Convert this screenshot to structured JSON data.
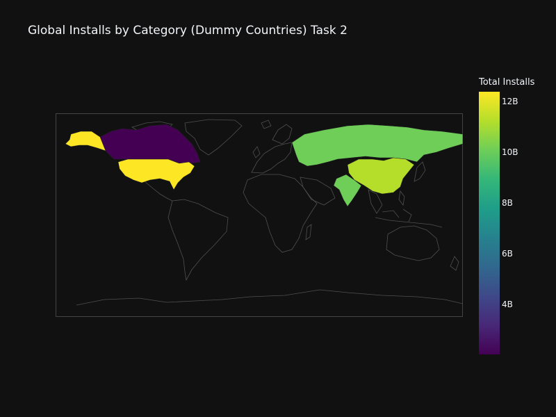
{
  "title": "Global Installs by Category (Dummy Countries) Task 2",
  "colorbar": {
    "title": "Total Installs",
    "ticks": [
      "12B",
      "10B",
      "8B",
      "6B",
      "4B"
    ],
    "range_billions": [
      2,
      12.5
    ],
    "colorscale": [
      "#440154",
      "#482878",
      "#3e4989",
      "#31688e",
      "#26828e",
      "#1f9e89",
      "#35b779",
      "#6ece58",
      "#b5de2b",
      "#fde725"
    ]
  },
  "countries": [
    {
      "name": "United States",
      "value": "12.5B",
      "color": "#fde725"
    },
    {
      "name": "China",
      "value": "11.5B",
      "color": "#b5de2b"
    },
    {
      "name": "Russia",
      "value": "10B",
      "color": "#6ece58"
    },
    {
      "name": "India",
      "value": "10B",
      "color": "#6ece58"
    },
    {
      "name": "Canada",
      "value": "2B",
      "color": "#440154"
    }
  ]
}
